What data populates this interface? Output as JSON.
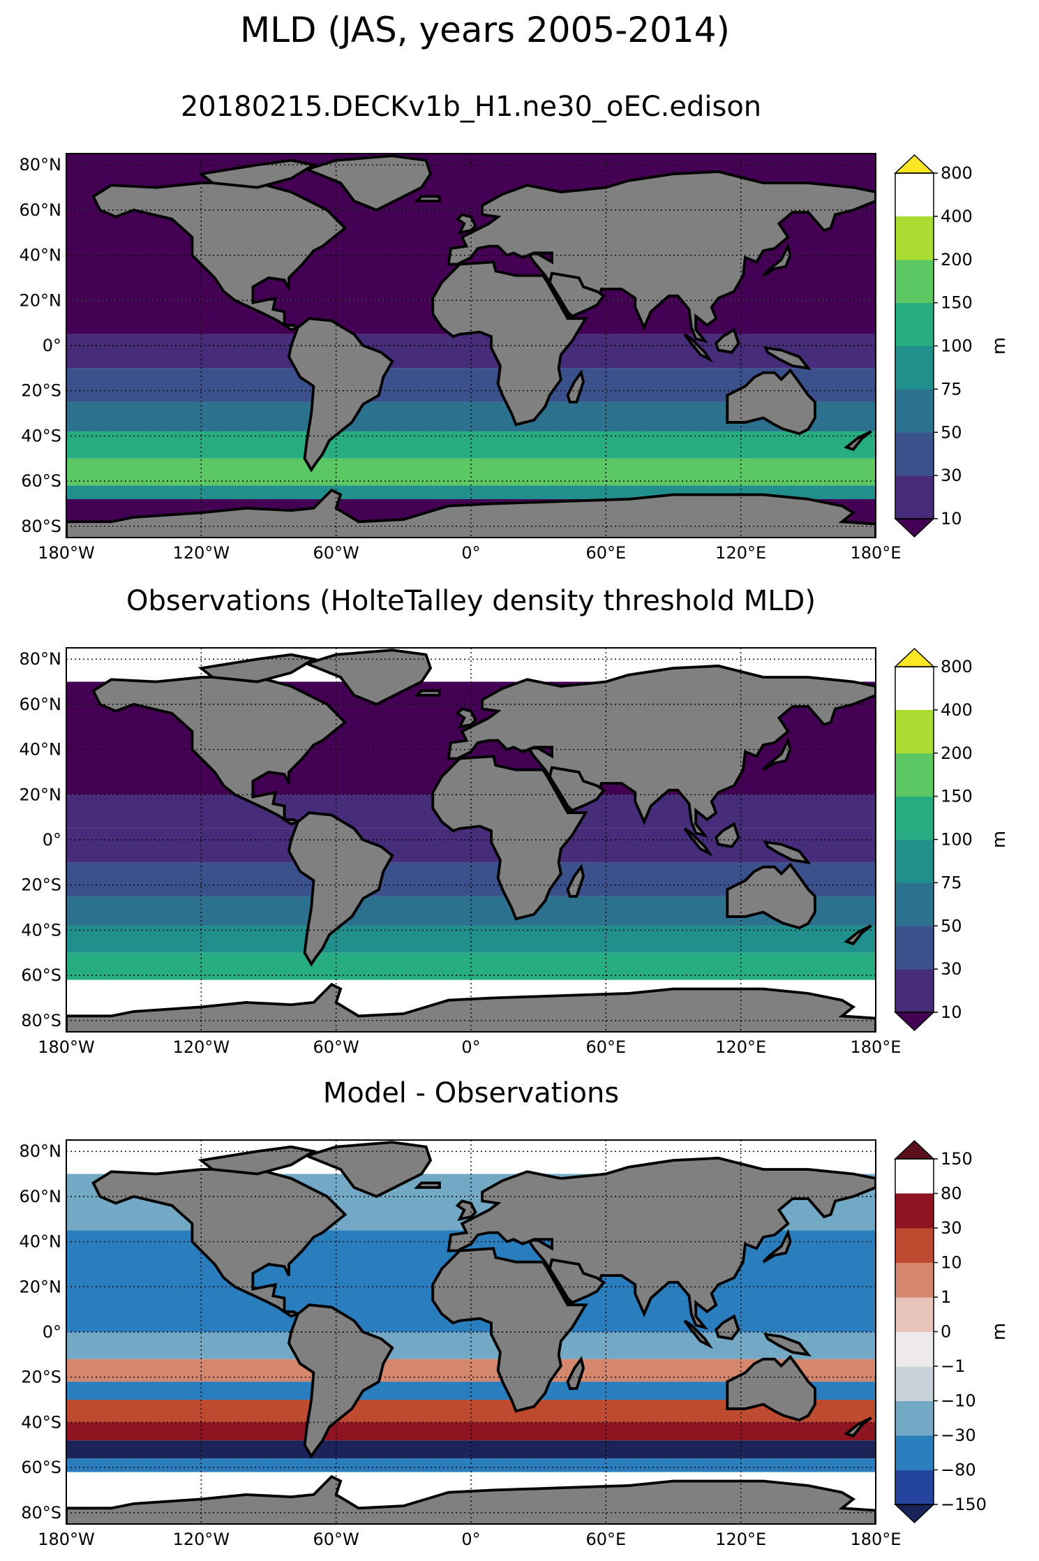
{
  "figure": {
    "title": "MLD (JAS, years 2005-2014)"
  },
  "chart_data": [
    {
      "type": "heatmap",
      "title": "20180215.DECKv1b_H1.ne30_oEC.edison",
      "x_ticks": [
        "180°W",
        "120°W",
        "60°W",
        "0°",
        "60°E",
        "120°E",
        "180°E"
      ],
      "y_ticks": [
        "80°N",
        "60°N",
        "40°N",
        "20°N",
        "0°",
        "20°S",
        "40°S",
        "60°S",
        "80°S"
      ],
      "xlim": [
        -180,
        180
      ],
      "ylim": [
        -85,
        85
      ],
      "colorbar": {
        "label": "m",
        "levels": [
          "10",
          "30",
          "50",
          "75",
          "100",
          "150",
          "200",
          "400",
          "800"
        ],
        "colors": [
          "#440154",
          "#472c7a",
          "#3b518b",
          "#2c718e",
          "#21908d",
          "#27ad81",
          "#5cc863",
          "#aadc32",
          "#fde725"
        ],
        "extend": "both"
      },
      "zonal_mean_bands": [
        {
          "lat": [
            60,
            85
          ],
          "value": 15
        },
        {
          "lat": [
            20,
            60
          ],
          "value": 20
        },
        {
          "lat": [
            5,
            20
          ],
          "value": 25
        },
        {
          "lat": [
            -10,
            5
          ],
          "value": 35
        },
        {
          "lat": [
            -25,
            -10
          ],
          "value": 55
        },
        {
          "lat": [
            -38,
            -25
          ],
          "value": 90
        },
        {
          "lat": [
            -50,
            -38
          ],
          "value": 150
        },
        {
          "lat": [
            -62,
            -50
          ],
          "value": 200
        },
        {
          "lat": [
            -68,
            -62
          ],
          "value": 100
        },
        {
          "lat": [
            -85,
            -68
          ],
          "value": 20
        }
      ]
    },
    {
      "type": "heatmap",
      "title": "Observations (HolteTalley density threshold MLD)",
      "x_ticks": [
        "180°W",
        "120°W",
        "60°W",
        "0°",
        "60°E",
        "120°E",
        "180°E"
      ],
      "y_ticks": [
        "80°N",
        "60°N",
        "40°N",
        "20°N",
        "0°",
        "20°S",
        "40°S",
        "60°S",
        "80°S"
      ],
      "xlim": [
        -180,
        180
      ],
      "ylim": [
        -85,
        85
      ],
      "colorbar": {
        "label": "m",
        "levels": [
          "10",
          "30",
          "50",
          "75",
          "100",
          "150",
          "200",
          "400",
          "800"
        ],
        "colors": [
          "#440154",
          "#472c7a",
          "#3b518b",
          "#2c718e",
          "#21908d",
          "#27ad81",
          "#5cc863",
          "#aadc32",
          "#fde725"
        ],
        "extend": "both"
      },
      "zonal_mean_bands": [
        {
          "lat": [
            20,
            70
          ],
          "value": 20
        },
        {
          "lat": [
            5,
            20
          ],
          "value": 35
        },
        {
          "lat": [
            -10,
            5
          ],
          "value": 45
        },
        {
          "lat": [
            -25,
            -10
          ],
          "value": 60
        },
        {
          "lat": [
            -38,
            -25
          ],
          "value": 80
        },
        {
          "lat": [
            -50,
            -38
          ],
          "value": 130
        },
        {
          "lat": [
            -62,
            -50
          ],
          "value": 180
        }
      ]
    },
    {
      "type": "heatmap",
      "title": "Model - Observations",
      "x_ticks": [
        "180°W",
        "120°W",
        "60°W",
        "0°",
        "60°E",
        "120°E",
        "180°E"
      ],
      "y_ticks": [
        "80°N",
        "60°N",
        "40°N",
        "20°N",
        "0°",
        "20°S",
        "40°S",
        "60°S",
        "80°S"
      ],
      "xlim": [
        -180,
        180
      ],
      "ylim": [
        -85,
        85
      ],
      "colorbar": {
        "label": "m",
        "levels": [
          "−150",
          "−80",
          "−30",
          "−10",
          "−1",
          "0",
          "1",
          "10",
          "30",
          "80",
          "150"
        ],
        "colors": [
          "#1a2458",
          "#25449e",
          "#2a7ebd",
          "#73a9c4",
          "#c9d3da",
          "#eee9ea",
          "#e8c4ba",
          "#d4876d",
          "#be4a2f",
          "#8f1422",
          "#5a0f1c"
        ],
        "extend": "both"
      },
      "zonal_mean_bands": [
        {
          "lat": [
            45,
            70
          ],
          "value": -3
        },
        {
          "lat": [
            15,
            45
          ],
          "value": -12
        },
        {
          "lat": [
            0,
            15
          ],
          "value": -20
        },
        {
          "lat": [
            -12,
            0
          ],
          "value": -8
        },
        {
          "lat": [
            -22,
            -12
          ],
          "value": 10
        },
        {
          "lat": [
            -30,
            -22
          ],
          "value": -15
        },
        {
          "lat": [
            -40,
            -30
          ],
          "value": 40
        },
        {
          "lat": [
            -48,
            -40
          ],
          "value": 90
        },
        {
          "lat": [
            -56,
            -48
          ],
          "value": -90
        },
        {
          "lat": [
            -62,
            -56
          ],
          "value": -30
        }
      ]
    }
  ]
}
